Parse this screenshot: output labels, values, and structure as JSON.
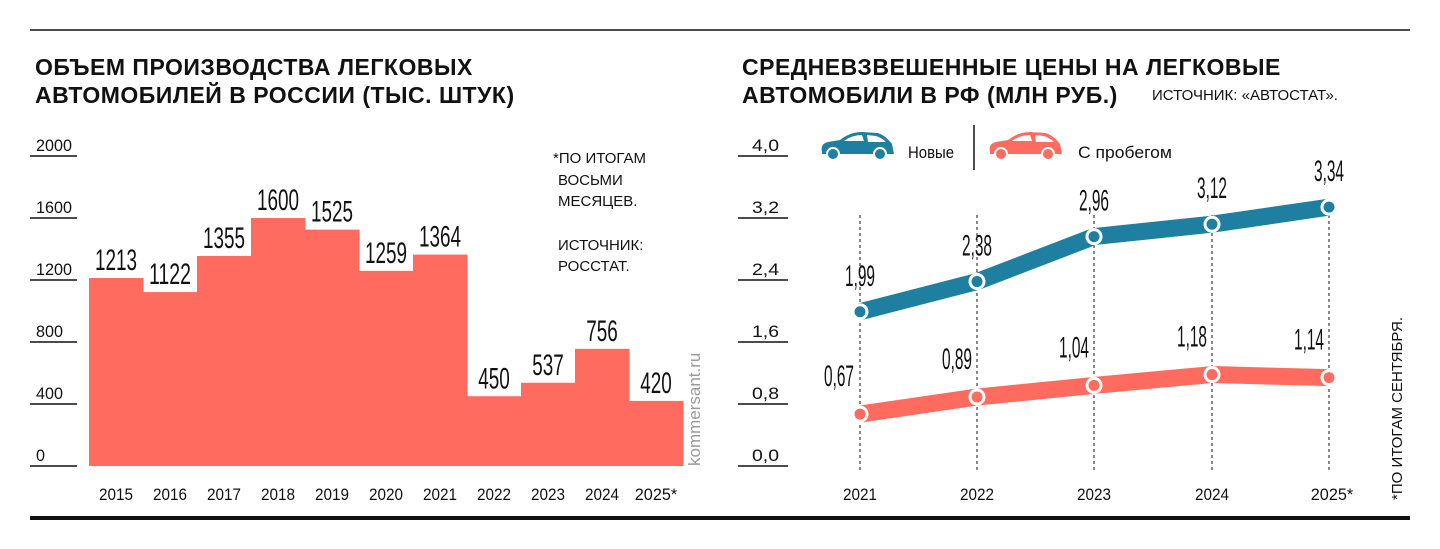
{
  "chart_data": [
    {
      "type": "bar",
      "title": "ОБЪЕМ ПРОИЗВОДСТВА ЛЕГКОВЫХ АВТОМОБИЛЕЙ В РОССИИ (ТЫС. ШТУК)",
      "title_lines": [
        "ОБЪЕМ ПРОИЗВОДСТВА ЛЕГКОВЫХ",
        "АВТОМОБИЛЕЙ В РОССИИ (ТЫС. ШТУК)"
      ],
      "categories": [
        "2015",
        "2016",
        "2017",
        "2018",
        "2019",
        "2020",
        "2021",
        "2022",
        "2023",
        "2024",
        "2025*"
      ],
      "values": [
        1213,
        1122,
        1355,
        1600,
        1525,
        1259,
        1364,
        450,
        537,
        756,
        420
      ],
      "ylim": [
        0,
        2000
      ],
      "yticks": [
        "0",
        "400",
        "800",
        "1200",
        "1600",
        "2000"
      ],
      "grid": false,
      "bar_color": "#ff6b5e",
      "note_lines": [
        "*ПО ИТОГАМ",
        "ВОСЬМИ",
        "МЕСЯЦЕВ.",
        "",
        "ИСТОЧНИК:",
        "РОССТАТ."
      ],
      "watermark": "kommersant.ru"
    },
    {
      "type": "line",
      "title": "СРЕДНЕВЗВЕШЕННЫЕ ЦЕНЫ НА ЛЕГКОВЫЕ АВТОМОБИЛИ В РФ (МЛН РУБ.)",
      "title_lines": [
        "СРЕДНЕВЗВЕШЕННЫЕ ЦЕНЫ НА ЛЕГКОВЫЕ",
        "АВТОМОБИЛИ В РФ (МЛН РУБ.)"
      ],
      "source": "ИСТОЧНИК: «АВТОСТАТ».",
      "categories": [
        "2021",
        "2022",
        "2023",
        "2024",
        "2025*"
      ],
      "series": [
        {
          "name": "Новые",
          "values": [
            1.99,
            2.38,
            2.96,
            3.12,
            3.34
          ],
          "labels": [
            "1,99",
            "2,38",
            "2,96",
            "3,12",
            "3,34"
          ],
          "color": "#1f7fa0",
          "icon": "car-icon"
        },
        {
          "name": "С пробегом",
          "values": [
            0.67,
            0.89,
            1.04,
            1.18,
            1.14
          ],
          "labels": [
            "0,67",
            "0,89",
            "1,04",
            "1,18",
            "1,14"
          ],
          "color": "#ff6b5e",
          "icon": "car-icon"
        }
      ],
      "ylim": [
        0,
        4
      ],
      "yticks": [
        "0,0",
        "0,8",
        "1,6",
        "2,4",
        "3,2",
        "4,0"
      ],
      "grid": false,
      "legend": "top-left",
      "note": "*ПО ИТОГАМ СЕНТЯБРЯ."
    }
  ]
}
